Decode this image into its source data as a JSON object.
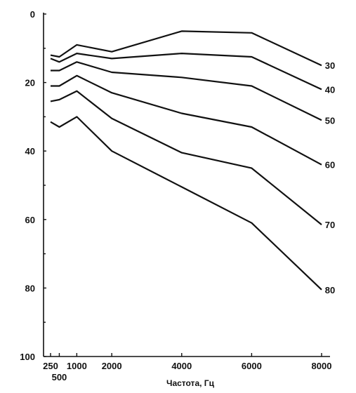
{
  "chart_data": {
    "type": "line",
    "title": "",
    "xlabel": "Частота, Гц",
    "ylabel": "",
    "ylim": [
      0,
      100
    ],
    "y_inverted": true,
    "xlim": [
      250,
      8000
    ],
    "grid": false,
    "x_ticks": [
      {
        "value": 250,
        "label": "250",
        "row": 1
      },
      {
        "value": 500,
        "label": "500",
        "row": 2
      },
      {
        "value": 1000,
        "label": "1000",
        "row": 1
      },
      {
        "value": 2000,
        "label": "2000",
        "row": 1
      },
      {
        "value": 4000,
        "label": "4000",
        "row": 1
      },
      {
        "value": 6000,
        "label": "6000",
        "row": 1
      },
      {
        "value": 8000,
        "label": "8000",
        "row": 1
      }
    ],
    "y_ticks": [
      {
        "value": 0,
        "label": "0"
      },
      {
        "value": 20,
        "label": "20"
      },
      {
        "value": 40,
        "label": "40"
      },
      {
        "value": 60,
        "label": "60"
      },
      {
        "value": 80,
        "label": "80"
      },
      {
        "value": 100,
        "label": "100"
      }
    ],
    "x": [
      250,
      500,
      1000,
      2000,
      4000,
      6000,
      8000
    ],
    "series": [
      {
        "name": "30",
        "values": [
          12,
          12.5,
          9,
          11,
          5,
          5.5,
          15
        ]
      },
      {
        "name": "40",
        "values": [
          13,
          14,
          11.5,
          13,
          11.5,
          12.5,
          22
        ]
      },
      {
        "name": "50",
        "values": [
          16.5,
          16.5,
          14,
          17,
          18.5,
          21,
          31
        ]
      },
      {
        "name": "60",
        "values": [
          21,
          21,
          18,
          23,
          29,
          33,
          44
        ]
      },
      {
        "name": "70",
        "values": [
          25.5,
          25,
          22.5,
          30.5,
          40.5,
          45,
          61.5
        ]
      },
      {
        "name": "80",
        "values": [
          31.5,
          33,
          30,
          40,
          50.5,
          61,
          80.5
        ]
      }
    ]
  }
}
